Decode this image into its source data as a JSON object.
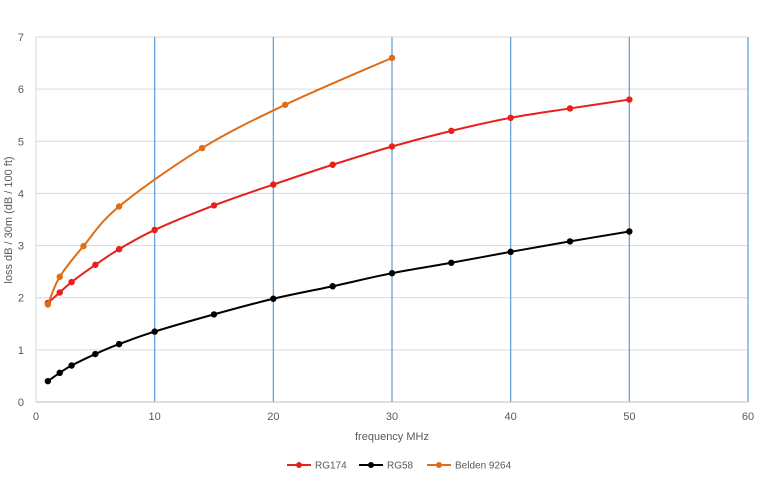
{
  "chart_data": {
    "type": "line",
    "title": "",
    "xlabel": "frequency MHz",
    "ylabel": "loss dB / 30m (dB / 100 ft)",
    "xlim": [
      0,
      60
    ],
    "ylim": [
      0,
      7
    ],
    "xticks": [
      0,
      10,
      20,
      30,
      40,
      50,
      60
    ],
    "yticks": [
      0,
      1,
      2,
      3,
      4,
      5,
      6,
      7
    ],
    "grid": {
      "horizontal": true,
      "vertical": true
    },
    "legend_position": "bottom",
    "series": [
      {
        "name": "RG174",
        "color": "#e8201a",
        "x": [
          1,
          2,
          3,
          5,
          7,
          10,
          15,
          20,
          25,
          30,
          35,
          40,
          45,
          50
        ],
        "y": [
          1.9,
          2.1,
          2.3,
          2.63,
          2.93,
          3.3,
          3.77,
          4.17,
          4.55,
          4.9,
          5.2,
          5.45,
          5.63,
          5.8
        ]
      },
      {
        "name": "RG58",
        "color": "#000000",
        "x": [
          1,
          2,
          3,
          5,
          7,
          10,
          15,
          20,
          25,
          30,
          35,
          40,
          45,
          50
        ],
        "y": [
          0.4,
          0.56,
          0.7,
          0.92,
          1.11,
          1.35,
          1.68,
          1.98,
          2.22,
          2.47,
          2.67,
          2.88,
          3.08,
          3.27
        ]
      },
      {
        "name": "Belden 9264",
        "color": "#e06c17",
        "x": [
          1,
          2,
          4,
          7,
          14,
          21,
          30
        ],
        "y": [
          1.87,
          2.4,
          2.99,
          3.75,
          4.87,
          5.7,
          6.6
        ]
      }
    ]
  }
}
